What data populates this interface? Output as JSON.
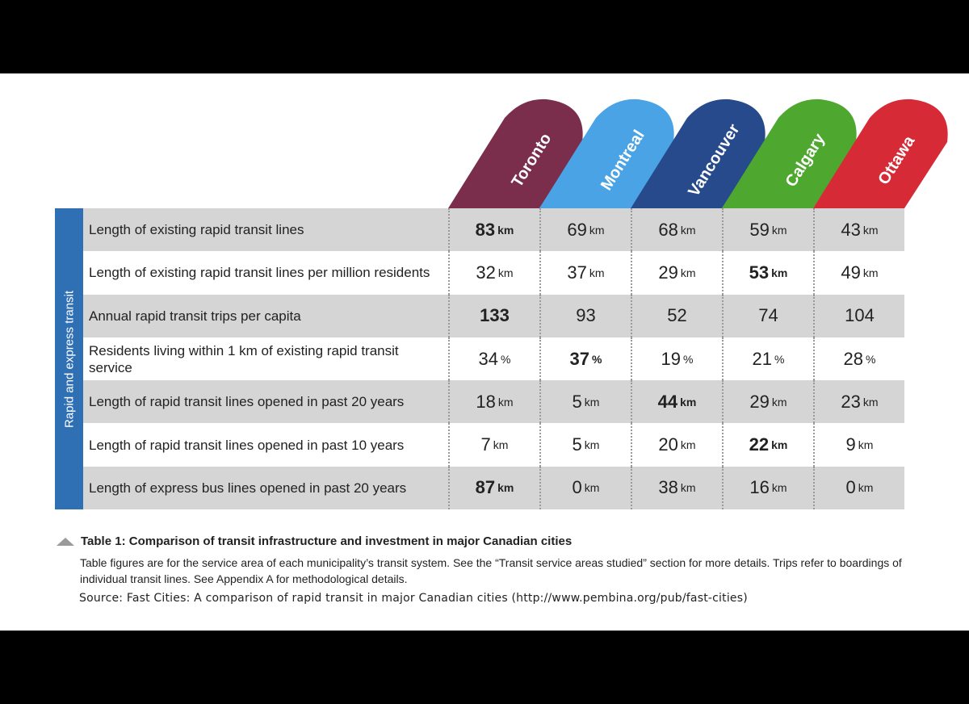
{
  "chart_data": {
    "type": "table",
    "section_label": "Rapid and express transit",
    "columns": [
      {
        "name": "Toronto",
        "color": "#7a2e4c"
      },
      {
        "name": "Montreal",
        "color": "#4aa3e4"
      },
      {
        "name": "Vancouver",
        "color": "#264a8c"
      },
      {
        "name": "Calgary",
        "color": "#4ea72e"
      },
      {
        "name": "Ottawa",
        "color": "#d62a37"
      }
    ],
    "rows": [
      {
        "label": "Length of existing rapid transit lines",
        "unit": "km",
        "values": [
          "83",
          "69",
          "68",
          "59",
          "43"
        ],
        "highlight": [
          0
        ]
      },
      {
        "label": "Length of existing rapid transit lines per million residents",
        "unit": "km",
        "values": [
          "32",
          "37",
          "29",
          "53",
          "49"
        ],
        "highlight": [
          3
        ]
      },
      {
        "label": "Annual rapid transit trips per capita",
        "unit": "",
        "values": [
          "133",
          "93",
          "52",
          "74",
          "104"
        ],
        "highlight": [
          0
        ]
      },
      {
        "label": "Residents living within 1 km of existing rapid transit service",
        "unit": "%",
        "values": [
          "34",
          "37",
          "19",
          "21",
          "28"
        ],
        "highlight": [
          1
        ]
      },
      {
        "label": "Length of rapid transit lines opened in past 20 years",
        "unit": "km",
        "values": [
          "18",
          "5",
          "44",
          "29",
          "23"
        ],
        "highlight": [
          2
        ]
      },
      {
        "label": "Length of rapid transit lines opened in past 10 years",
        "unit": "km",
        "values": [
          "7",
          "5",
          "20",
          "22",
          "9"
        ],
        "highlight": [
          3
        ]
      },
      {
        "label": "Length of express bus lines opened in past 20 years",
        "unit": "km",
        "values": [
          "87",
          "0",
          "38",
          "16",
          "0"
        ],
        "highlight": [
          0
        ]
      }
    ]
  },
  "caption": {
    "title": "Table 1: Comparison of transit infrastructure and investment in major Canadian cities",
    "description": "Table figures are for the service area of each municipality’s transit system. See the “Transit service areas studied” section for more details. Trips refer to boardings of individual transit lines. See Appendix A for methodological details.",
    "source": "Source: Fast Cities: A comparison of rapid transit in major Canadian cities (http://www.pembina.org/pub/fast-cities)"
  },
  "icons": {
    "caption_marker": "triangle-icon"
  }
}
